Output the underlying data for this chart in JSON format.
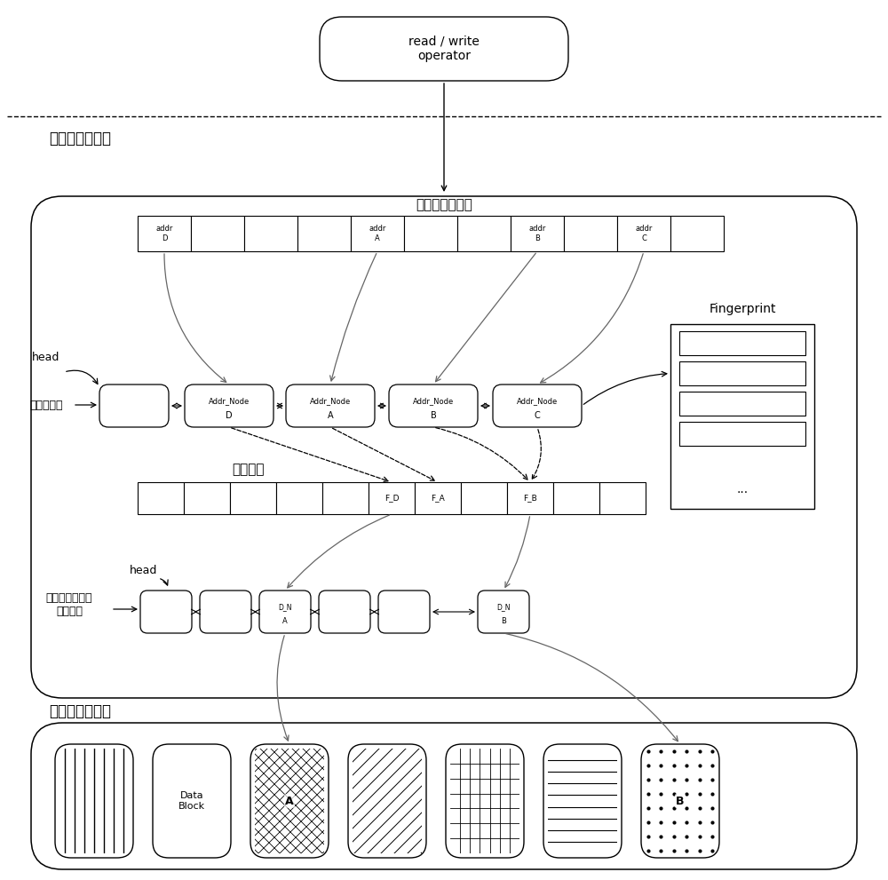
{
  "bg_color": "#ffffff",
  "fig_width": 10.0,
  "fig_height": 9.91,
  "title_top": "read / write\noperator",
  "label_metadata": "元数据管理模块",
  "label_source_index": "源地址映射索引",
  "label_source_mgmt": "源地址管理",
  "label_fingerprint_index": "指纹索引",
  "label_unique_cache": "唯一数据块缓存\n地址管理",
  "label_data_block_mgmt": "数据块管理模块",
  "label_fingerprint": "Fingerprint",
  "label_head_top": "head",
  "label_head_bottom": "head",
  "addr_nodes": [
    "D",
    "A",
    "B",
    "C"
  ],
  "fingerprint_labels": [
    "F_D",
    "F_A",
    "F_B"
  ],
  "dn_labels": [
    "A",
    "B"
  ]
}
